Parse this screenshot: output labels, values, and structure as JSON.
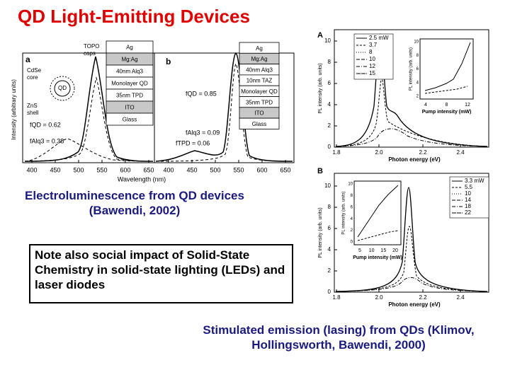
{
  "title": "QD Light-Emitting Devices",
  "left_figure": {
    "panel_a": "a",
    "panel_b": "b",
    "qd_labels": [
      "CdSe",
      "core",
      "ZnS",
      "shell",
      "QD",
      "TOPO",
      "caps"
    ],
    "stack_a": [
      "Ag",
      "Mg:Ag",
      "40nm Alq3",
      "Monolayer QD",
      "35nm TPD",
      "ITO",
      "Glass"
    ],
    "stack_b": [
      "Ag",
      "Mg:Ag",
      "40nm Alq3",
      "10nm TAZ",
      "Monolayer QD",
      "35nm TPD",
      "ITO",
      "Glass"
    ],
    "annotations_a": [
      "fQD = 0.62",
      "fAlq3 = 0.38"
    ],
    "annotations_b": [
      "fQD = 0.85",
      "fAlq3 = 0.09",
      "fTPD = 0.06"
    ],
    "y_label": "Intensity (arbitrary units)",
    "x_label": "Wavelength (nm)",
    "x_ticks_a": [
      "400",
      "450",
      "500",
      "550",
      "600",
      "650"
    ],
    "x_ticks_b": [
      "400",
      "450",
      "500",
      "550",
      "600",
      "650"
    ]
  },
  "caption_left": "Electroluminescence from QD devices (Bawendi, 2002)",
  "note": "Note also social impact of Solid-State Chemistry in solid-state lighting (LEDs) and laser diodes",
  "right_figure": {
    "panels": [
      {
        "label": "A",
        "legend": [
          "2.5 mW",
          "3.7",
          "8",
          "10",
          "12",
          "15"
        ],
        "y_label": "PL intensity (arb. units)",
        "x_label": "Photon energy (eV)",
        "y_ticks": [
          "0",
          "2",
          "4",
          "6",
          "8",
          "10"
        ],
        "x_ticks": [
          "1.8",
          "2.0",
          "2.2",
          "2.4"
        ],
        "inset": {
          "y_label": "PL intensity (arb. units)",
          "x_label": "Pump intensity (mW)",
          "x_ticks": [
            "4",
            "8",
            "12"
          ],
          "y_ticks": [
            "2",
            "4",
            "6",
            "8",
            "10"
          ]
        }
      },
      {
        "label": "B",
        "legend": [
          "3.3 mW",
          "5.5",
          "10",
          "14",
          "18",
          "22"
        ],
        "y_label": "PL intensity (arb. units)",
        "x_label": "Photon energy (eV)",
        "y_ticks": [
          "0",
          "2",
          "4",
          "6",
          "8",
          "10"
        ],
        "x_ticks": [
          "1.8",
          "2.0",
          "2.2",
          "2.4"
        ],
        "inset": {
          "y_label": "PL intensity (arb. units)",
          "x_label": "Pump intensity (mW)",
          "x_ticks": [
            "5",
            "10",
            "15",
            "20"
          ],
          "y_ticks": [
            "0",
            "2",
            "4",
            "6",
            "8",
            "10"
          ]
        }
      }
    ]
  },
  "caption_right": "Stimulated emission (lasing) from QDs (Klimov, Hollingsworth, Bawendi, 2000)"
}
